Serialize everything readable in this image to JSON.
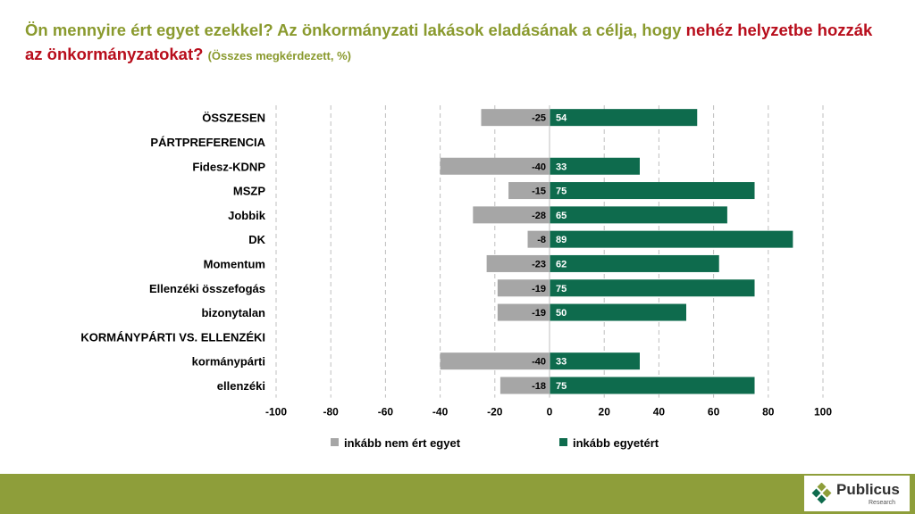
{
  "title": {
    "part1": "Ön mennyire ért egyet ezekkel? Az önkormányzati lakások eladásának a célja, hogy ",
    "highlight_a": "nehéz",
    "highlight_b": "helyzetbe hozzák az önkormányzatokat",
    "question_mark": "?",
    "subtitle": "(Összes megkérdezett, %)"
  },
  "colors": {
    "negative": "#a6a6a6",
    "positive": "#0e6b4d",
    "title_green": "#8a9a2e",
    "title_red": "#b80e1c",
    "footer": "#8e9e3a"
  },
  "chart_data": {
    "type": "bar",
    "orientation": "horizontal",
    "stacked": "diverging",
    "categories": [
      "ÖSSZESEN",
      "PÁRTPREFERENCIA",
      "Fidesz-KDNP",
      "MSZP",
      "Jobbik",
      "DK",
      "Momentum",
      "Ellenzéki összefogás",
      "bizonytalan",
      "KORMÁNYPÁRTI VS. ELLENZÉKI",
      "kormánypárti",
      "ellenzéki"
    ],
    "series": [
      {
        "name": "inkább nem ért egyet",
        "values": [
          -25,
          null,
          -40,
          -15,
          -28,
          -8,
          -23,
          -19,
          -19,
          null,
          -40,
          -18
        ]
      },
      {
        "name": "inkább egyetért",
        "values": [
          54,
          null,
          33,
          75,
          65,
          89,
          62,
          75,
          50,
          null,
          33,
          75
        ]
      }
    ],
    "xlim": [
      -100,
      100
    ],
    "xticks": [
      -100,
      -80,
      -60,
      -40,
      -20,
      0,
      20,
      40,
      60,
      80,
      100
    ],
    "grid": true,
    "legend": "bottom"
  },
  "logo": {
    "name": "Publicus",
    "sub": "Research"
  }
}
